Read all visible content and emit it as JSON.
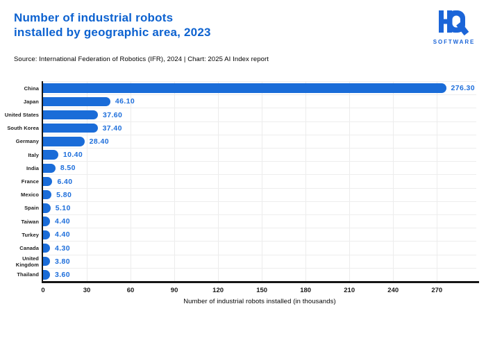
{
  "header": {
    "title_line1": "Number of industrial robots",
    "title_line2": "installed by geographic area, 2023",
    "source": "Source: International Federation of Robotics (IFR), 2024 | Chart: 2025 AI Index report"
  },
  "logo": {
    "mark": "HQ",
    "text": "SOFTWARE"
  },
  "chart_data": {
    "type": "bar",
    "orientation": "horizontal",
    "title": "Number of industrial robots installed by geographic area, 2023",
    "categories": [
      "China",
      "Japan",
      "United States",
      "South Korea",
      "Germany",
      "Italy",
      "India",
      "France",
      "Mexico",
      "Spain",
      "Taiwan",
      "Turkey",
      "Canada",
      "United Kingdom",
      "Thailand"
    ],
    "values": [
      276.3,
      46.1,
      37.6,
      37.4,
      28.4,
      10.4,
      8.5,
      6.4,
      5.8,
      5.1,
      4.4,
      4.4,
      4.3,
      3.8,
      3.6
    ],
    "value_labels": [
      "276.30",
      "46.10",
      "37.60",
      "37.40",
      "28.40",
      "10.40",
      "8.50",
      "6.40",
      "5.80",
      "5.10",
      "4.40",
      "4.40",
      "4.30",
      "3.80",
      "3.60"
    ],
    "xlabel": "Number of industrial robots installed (in thousands)",
    "xticks": [
      0,
      30,
      60,
      90,
      120,
      150,
      180,
      210,
      240,
      270
    ],
    "xlim": [
      0,
      297
    ],
    "grid": true,
    "legend": false,
    "data_labels": true
  },
  "colors": {
    "title_blue": "#0d62d0",
    "bar_blue": "#1a6cd8",
    "value_blue": "#1d6edb",
    "logo_blue": "#1b65d8",
    "grid": "#ececec",
    "axis": "#151515"
  }
}
